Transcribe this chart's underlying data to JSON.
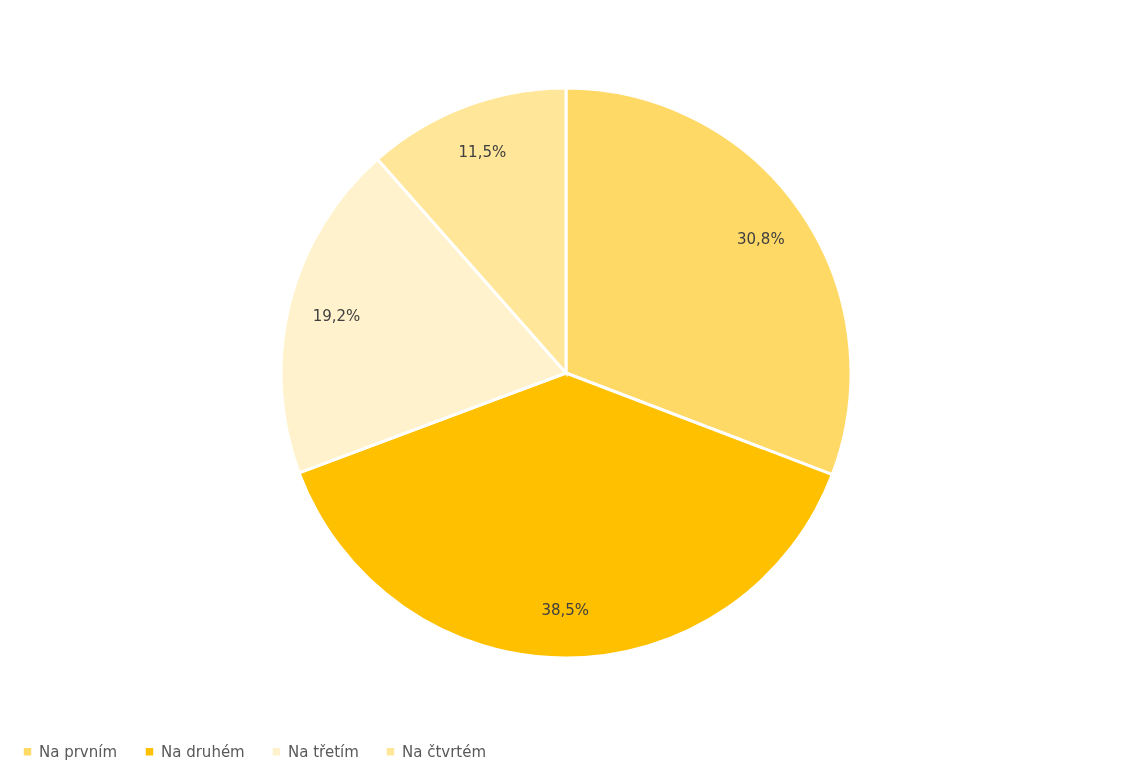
{
  "chart_data": {
    "type": "pie",
    "categories": [
      "Na prvním",
      "Na druhém",
      "Na třetím",
      "Na čtvrtém"
    ],
    "values": [
      30.8,
      38.5,
      19.2,
      11.5
    ],
    "colors": [
      "#ffd966",
      "#ffc000",
      "#fff2cc",
      "#ffe699"
    ],
    "value_labels": [
      "30,8%",
      "38,5%",
      "19,2%",
      "11,5%"
    ],
    "legend": "bottom"
  }
}
